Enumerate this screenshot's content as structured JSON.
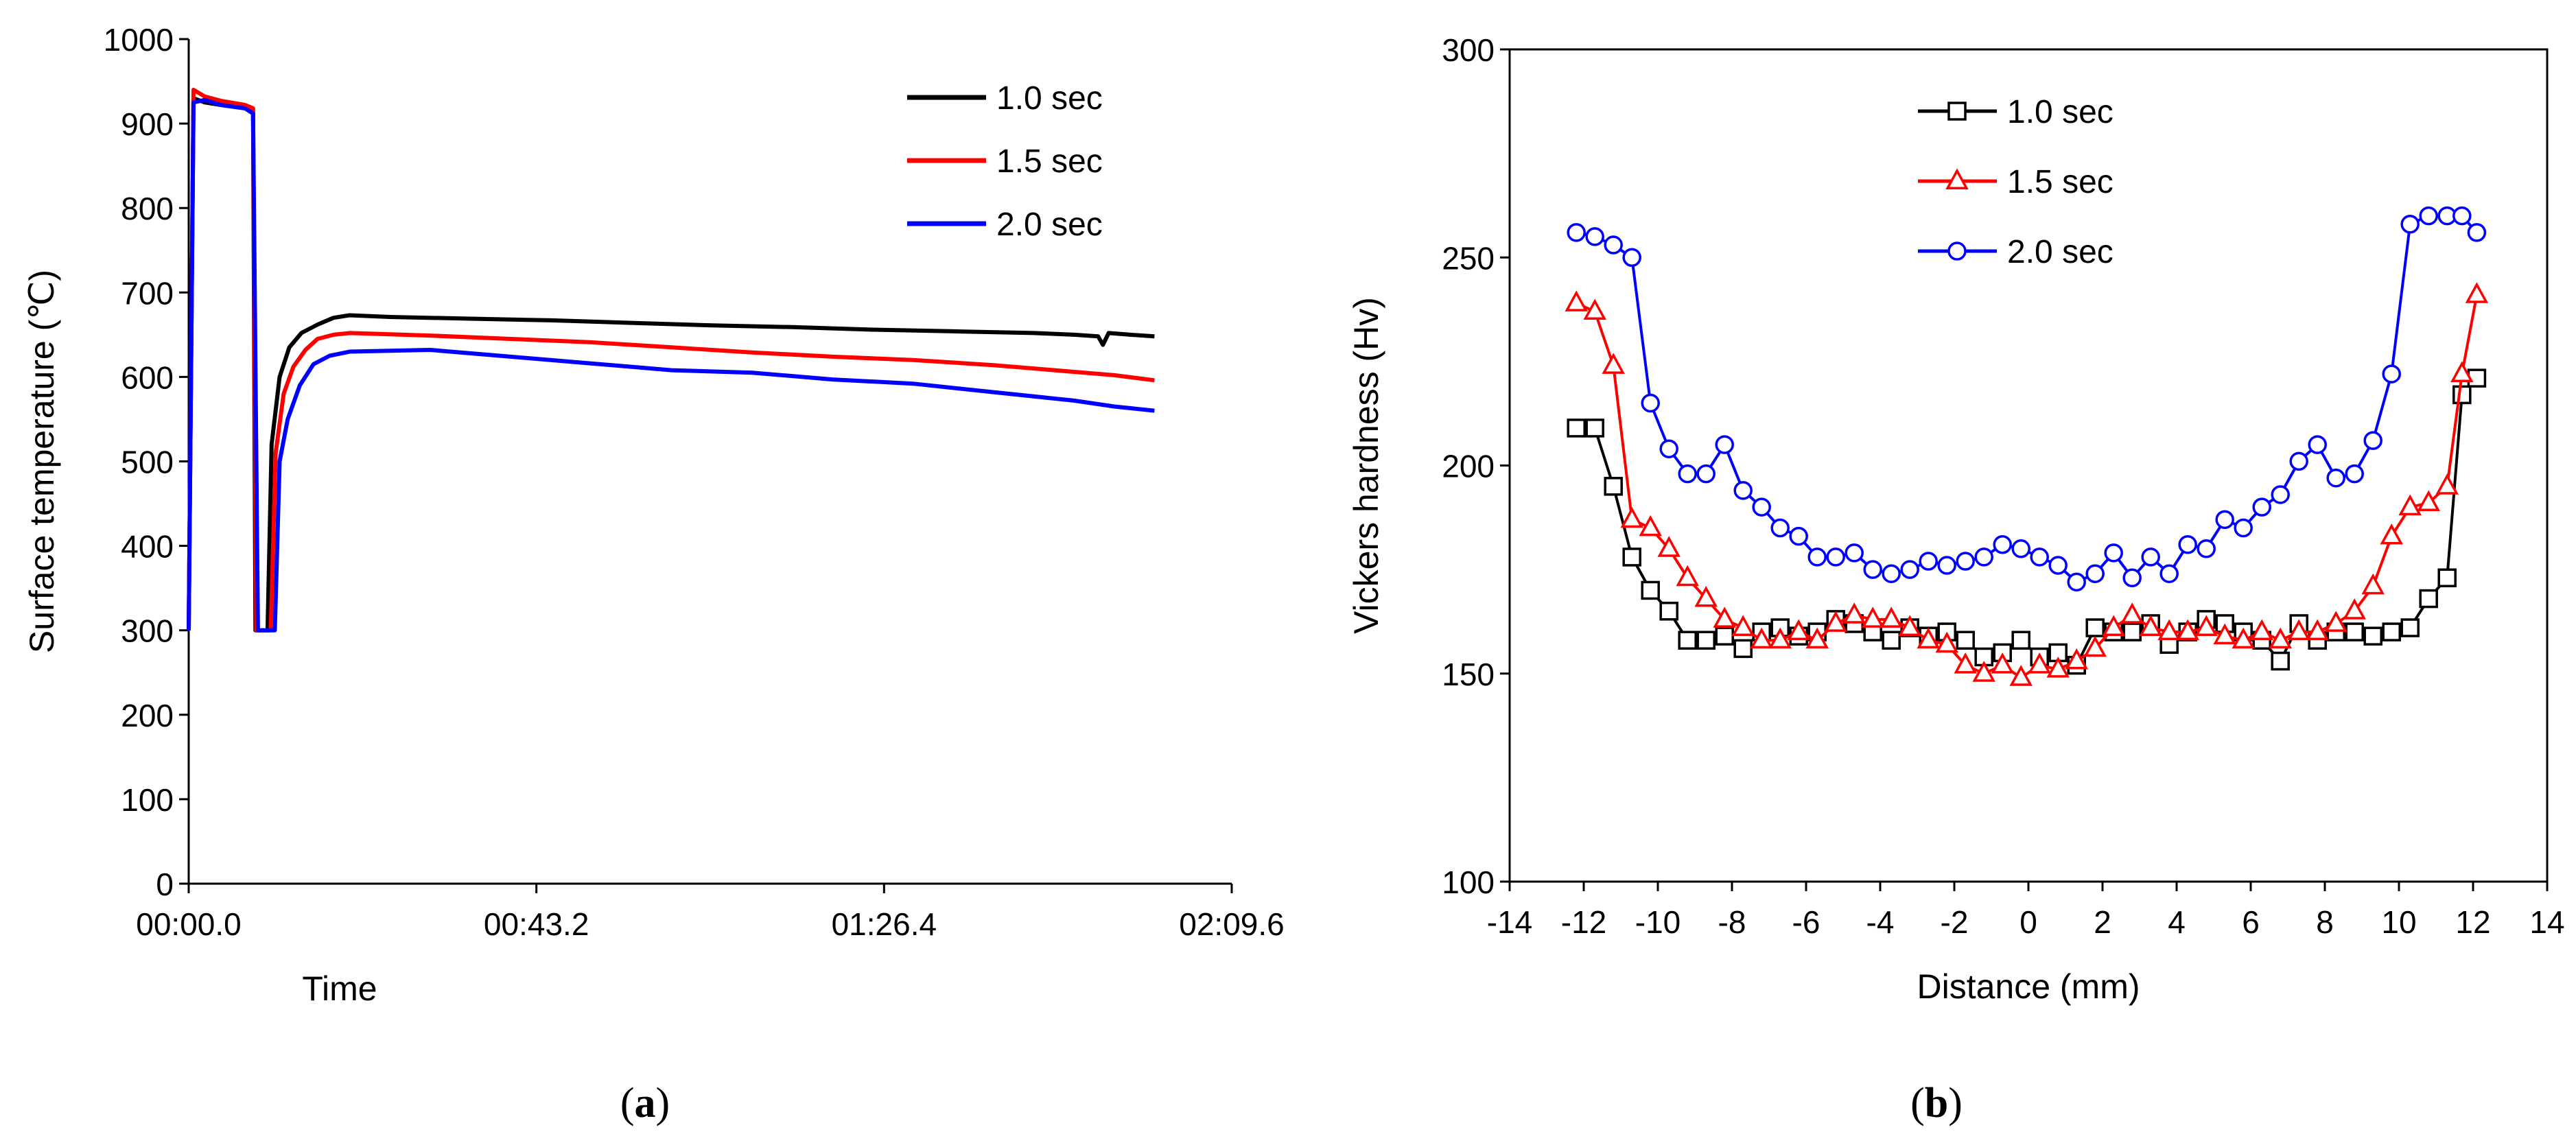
{
  "chart_data": [
    {
      "id": "a",
      "type": "line",
      "panel_label_open": "(",
      "panel_label_letter": "a",
      "panel_label_close": ")",
      "xlabel": "Time",
      "ylabel": "Surface temperature (℃)",
      "xlim": [
        0,
        129.6
      ],
      "ylim": [
        0,
        1000
      ],
      "grid": false,
      "legend_position": "top-right",
      "x_ticks": [
        0,
        43.2,
        86.4,
        129.6
      ],
      "x_tick_labels": [
        "00:00.0",
        "00:43.2",
        "01:26.4",
        "02:09.6"
      ],
      "y_ticks": [
        0,
        100,
        200,
        300,
        400,
        500,
        600,
        700,
        800,
        900,
        1000
      ],
      "y_tick_labels": [
        "0",
        "100",
        "200",
        "300",
        "400",
        "500",
        "600",
        "700",
        "800",
        "900",
        "1000"
      ],
      "series": [
        {
          "name": "1.0 sec",
          "color": "#000000",
          "points": [
            [
              0,
              300
            ],
            [
              0.6,
              930
            ],
            [
              2,
              925
            ],
            [
              4,
              922
            ],
            [
              7,
              918
            ],
            [
              8,
              912
            ],
            [
              8.3,
              300
            ],
            [
              8.7,
              300
            ],
            [
              9.2,
              300
            ],
            [
              9.8,
              300
            ],
            [
              10.3,
              520
            ],
            [
              11.3,
              600
            ],
            [
              12.5,
              635
            ],
            [
              14,
              652
            ],
            [
              16,
              662
            ],
            [
              18,
              670
            ],
            [
              20,
              673
            ],
            [
              25,
              671
            ],
            [
              35,
              669
            ],
            [
              45,
              667
            ],
            [
              55,
              664
            ],
            [
              65,
              661
            ],
            [
              75,
              659
            ],
            [
              85,
              656
            ],
            [
              95,
              654
            ],
            [
              105,
              652
            ],
            [
              110,
              650
            ],
            [
              113,
              648
            ],
            [
              113.6,
              638
            ],
            [
              114.3,
              652
            ],
            [
              117,
              650
            ],
            [
              120,
              648
            ]
          ]
        },
        {
          "name": "1.5 sec",
          "color": "#ff0000",
          "points": [
            [
              0,
              300
            ],
            [
              0.6,
              940
            ],
            [
              2,
              932
            ],
            [
              4,
              927
            ],
            [
              7,
              922
            ],
            [
              8,
              918
            ],
            [
              8.4,
              300
            ],
            [
              9,
              300
            ],
            [
              9.4,
              300
            ],
            [
              10.2,
              300
            ],
            [
              10.8,
              510
            ],
            [
              11.8,
              580
            ],
            [
              13,
              612
            ],
            [
              14.5,
              632
            ],
            [
              16,
              645
            ],
            [
              18,
              650
            ],
            [
              20,
              652
            ],
            [
              30,
              649
            ],
            [
              40,
              645
            ],
            [
              50,
              641
            ],
            [
              60,
              635
            ],
            [
              70,
              629
            ],
            [
              80,
              624
            ],
            [
              90,
              620
            ],
            [
              100,
              614
            ],
            [
              110,
              606
            ],
            [
              115,
              602
            ],
            [
              120,
              596
            ]
          ]
        },
        {
          "name": "2.0 sec",
          "color": "#0000ff",
          "points": [
            [
              0,
              300
            ],
            [
              0.6,
              925
            ],
            [
              2,
              928
            ],
            [
              4,
              922
            ],
            [
              7,
              918
            ],
            [
              8,
              912
            ],
            [
              8.6,
              300
            ],
            [
              9.4,
              300
            ],
            [
              10,
              300
            ],
            [
              10.7,
              300
            ],
            [
              11.3,
              500
            ],
            [
              12.3,
              550
            ],
            [
              13.8,
              590
            ],
            [
              15.5,
              615
            ],
            [
              17.5,
              625
            ],
            [
              20,
              630
            ],
            [
              30,
              632
            ],
            [
              40,
              624
            ],
            [
              50,
              616
            ],
            [
              60,
              608
            ],
            [
              70,
              605
            ],
            [
              80,
              597
            ],
            [
              90,
              592
            ],
            [
              100,
              582
            ],
            [
              110,
              572
            ],
            [
              115,
              565
            ],
            [
              120,
              560
            ]
          ]
        }
      ]
    },
    {
      "id": "b",
      "type": "line",
      "marker_style": "hollow",
      "panel_label_open": "(",
      "panel_label_letter": "b",
      "panel_label_close": ")",
      "xlabel": "Distance (mm)",
      "ylabel": "Vickers hardness (Hv)",
      "xlim": [
        -14,
        14
      ],
      "ylim": [
        100,
        300
      ],
      "grid": false,
      "legend_position": "top-left",
      "x_ticks": [
        -14,
        -12,
        -10,
        -8,
        -6,
        -4,
        -2,
        0,
        2,
        4,
        6,
        8,
        10,
        12,
        14
      ],
      "x_tick_labels": [
        "-14",
        "-12",
        "-10",
        "-8",
        "-6",
        "-4",
        "-2",
        "0",
        "2",
        "4",
        "6",
        "8",
        "10",
        "12",
        "14"
      ],
      "y_ticks": [
        100,
        150,
        200,
        250,
        300
      ],
      "y_tick_labels": [
        "100",
        "150",
        "200",
        "250",
        "300"
      ],
      "series": [
        {
          "name": "1.0 sec",
          "color": "#000000",
          "marker": "square",
          "x": [
            -12.2,
            -11.7,
            -11.2,
            -10.7,
            -10.2,
            -9.7,
            -9.2,
            -8.7,
            -8.2,
            -7.7,
            -7.2,
            -6.7,
            -6.2,
            -5.7,
            -5.2,
            -4.7,
            -4.2,
            -3.7,
            -3.2,
            -2.7,
            -2.2,
            -1.7,
            -1.2,
            -0.7,
            -0.2,
            0.3,
            0.8,
            1.3,
            1.8,
            2.3,
            2.8,
            3.3,
            3.8,
            4.3,
            4.8,
            5.3,
            5.8,
            6.3,
            6.8,
            7.3,
            7.8,
            8.3,
            8.8,
            9.3,
            9.8,
            10.3,
            10.8,
            11.3,
            11.7,
            12.1
          ],
          "y": [
            209,
            209,
            195,
            178,
            170,
            165,
            158,
            158,
            159,
            156,
            160,
            161,
            159,
            160,
            163,
            162,
            160,
            158,
            161,
            159,
            160,
            158,
            154,
            155,
            158,
            154,
            155,
            152,
            161,
            160,
            160,
            162,
            157,
            160,
            163,
            162,
            160,
            158,
            153,
            162,
            158,
            160,
            160,
            159,
            160,
            161,
            168,
            173,
            217,
            221
          ]
        },
        {
          "name": "1.5 sec",
          "color": "#ff0000",
          "marker": "triangle",
          "x": [
            -12.2,
            -11.7,
            -11.2,
            -10.7,
            -10.2,
            -9.7,
            -9.2,
            -8.7,
            -8.2,
            -7.7,
            -7.2,
            -6.7,
            -6.2,
            -5.7,
            -5.2,
            -4.7,
            -4.2,
            -3.7,
            -3.2,
            -2.7,
            -2.2,
            -1.7,
            -1.2,
            -0.7,
            -0.2,
            0.3,
            0.8,
            1.3,
            1.8,
            2.3,
            2.8,
            3.3,
            3.8,
            4.3,
            4.8,
            5.3,
            5.8,
            6.3,
            6.8,
            7.3,
            7.8,
            8.3,
            8.8,
            9.3,
            9.8,
            10.3,
            10.8,
            11.3,
            11.7,
            12.1
          ],
          "y": [
            239,
            237,
            224,
            187,
            185,
            180,
            173,
            168,
            163,
            161,
            158,
            158,
            160,
            158,
            162,
            164,
            163,
            163,
            161,
            158,
            157,
            152,
            150,
            152,
            149,
            152,
            151,
            153,
            156,
            161,
            164,
            161,
            160,
            160,
            161,
            159,
            158,
            160,
            158,
            160,
            160,
            162,
            165,
            171,
            183,
            190,
            191,
            195,
            222,
            241
          ]
        },
        {
          "name": "2.0 sec",
          "color": "#0000ff",
          "marker": "circle",
          "x": [
            -12.2,
            -11.7,
            -11.2,
            -10.7,
            -10.2,
            -9.7,
            -9.2,
            -8.7,
            -8.2,
            -7.7,
            -7.2,
            -6.7,
            -6.2,
            -5.7,
            -5.2,
            -4.7,
            -4.2,
            -3.7,
            -3.2,
            -2.7,
            -2.2,
            -1.7,
            -1.2,
            -0.7,
            -0.2,
            0.3,
            0.8,
            1.3,
            1.8,
            2.3,
            2.8,
            3.3,
            3.8,
            4.3,
            4.8,
            5.3,
            5.8,
            6.3,
            6.8,
            7.3,
            7.8,
            8.3,
            8.8,
            9.3,
            9.8,
            10.3,
            10.8,
            11.3,
            11.7,
            12.1
          ],
          "y": [
            256,
            255,
            253,
            250,
            215,
            204,
            198,
            198,
            205,
            194,
            190,
            185,
            183,
            178,
            178,
            179,
            175,
            174,
            175,
            177,
            176,
            177,
            178,
            181,
            180,
            178,
            176,
            172,
            174,
            179,
            173,
            178,
            174,
            181,
            180,
            187,
            185,
            190,
            193,
            201,
            205,
            197,
            198,
            206,
            222,
            258,
            260,
            260,
            260,
            256
          ]
        }
      ]
    }
  ]
}
